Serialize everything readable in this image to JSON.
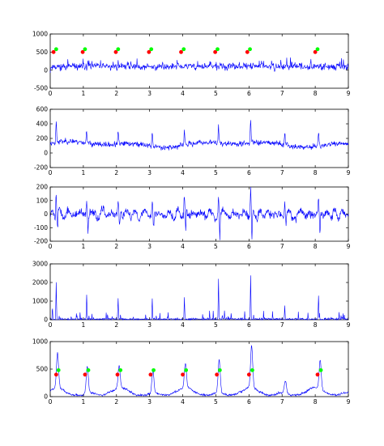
{
  "chart_data": [
    {
      "type": "line",
      "xlim": [
        0,
        9
      ],
      "ylim": [
        -500,
        1000
      ],
      "xticks": [
        "0",
        "1",
        "2",
        "3",
        "4",
        "5",
        "6",
        "7",
        "8",
        "9"
      ],
      "yticks": [
        "-500",
        "0",
        "500",
        "1000"
      ],
      "ytick_values": [
        -500,
        0,
        500,
        1000
      ],
      "grid": false,
      "signal": {
        "baseline": 100,
        "noise": 90,
        "spikes": 120,
        "spike_height": 150,
        "spike_width": 0.02,
        "hf": 0.35,
        "seed": 11
      },
      "markers": [
        {
          "name": "red",
          "color": "#ff0000",
          "x": [
            0.1,
            0.98,
            1.98,
            2.98,
            3.95,
            4.98,
            5.95,
            8.0
          ],
          "y": [
            500,
            500,
            500,
            500,
            500,
            500,
            500,
            500
          ]
        },
        {
          "name": "green",
          "color": "#00ff00",
          "x": [
            0.18,
            1.05,
            2.05,
            3.05,
            4.03,
            5.05,
            6.03,
            8.07
          ],
          "y": [
            580,
            580,
            580,
            580,
            580,
            580,
            580,
            580
          ]
        }
      ]
    },
    {
      "type": "line",
      "xlim": [
        0,
        9
      ],
      "ylim": [
        -200,
        600
      ],
      "xticks": [
        "0",
        "1",
        "2",
        "3",
        "4",
        "5",
        "6",
        "7",
        "8",
        "9"
      ],
      "yticks": [
        "-200",
        "0",
        "200",
        "400",
        "600"
      ],
      "ytick_values": [
        -200,
        0,
        200,
        400,
        600
      ],
      "grid": false,
      "signal": {
        "baseline": 120,
        "noise": 30,
        "wander": 40,
        "hf": 0.15,
        "seed": 23
      },
      "peaks": {
        "x": [
          0.18,
          1.1,
          2.05,
          3.08,
          4.05,
          5.08,
          6.05,
          7.08,
          8.1
        ],
        "y": [
          390,
          300,
          290,
          310,
          320,
          370,
          430,
          280,
          330
        ]
      }
    },
    {
      "type": "line",
      "xlim": [
        0,
        9
      ],
      "ylim": [
        -200,
        200
      ],
      "xticks": [
        "0",
        "1",
        "2",
        "3",
        "4",
        "5",
        "6",
        "7",
        "8",
        "9"
      ],
      "yticks": [
        "-200",
        "-100",
        "0",
        "100",
        "200"
      ],
      "ytick_values": [
        -200,
        -100,
        0,
        100,
        200
      ],
      "grid": false,
      "signal": {
        "baseline": 0,
        "noise": 22,
        "oscillation": 35,
        "hf": 0.05,
        "seed": 37
      },
      "peaks": {
        "x": [
          0.18,
          1.1,
          2.05,
          3.08,
          4.05,
          5.08,
          6.05,
          7.08,
          8.1
        ],
        "y": [
          160,
          100,
          90,
          110,
          120,
          150,
          190,
          80,
          120
        ]
      },
      "troughs": {
        "x": [
          0.22,
          1.14,
          2.09,
          3.12,
          4.09,
          5.12,
          6.09,
          7.12,
          8.14
        ],
        "y": [
          -90,
          -110,
          -90,
          -100,
          -130,
          -180,
          -200,
          -80,
          -150
        ]
      }
    },
    {
      "type": "line",
      "xlim": [
        0,
        9
      ],
      "ylim": [
        0,
        3000
      ],
      "xticks": [
        "0",
        "1",
        "2",
        "3",
        "4",
        "5",
        "6",
        "7",
        "8",
        "9"
      ],
      "yticks": [
        "0",
        "1000",
        "2000",
        "3000"
      ],
      "ytick_values": [
        0,
        1000,
        2000,
        3000
      ],
      "grid": false,
      "signal": {
        "baseline": 30,
        "noise": 40,
        "small_spikes": 55,
        "small_spike_height": 450,
        "hf": 0.1,
        "seed": 51
      },
      "peaks": {
        "x": [
          0.18,
          1.1,
          2.05,
          3.08,
          4.05,
          5.08,
          6.05,
          7.08,
          8.1
        ],
        "y": [
          2000,
          1350,
          1150,
          1100,
          1200,
          2200,
          2400,
          800,
          1300
        ]
      }
    },
    {
      "type": "line",
      "xlim": [
        0,
        9
      ],
      "ylim": [
        0,
        1000
      ],
      "xticks": [
        "0",
        "1",
        "2",
        "3",
        "4",
        "5",
        "6",
        "7",
        "8",
        "9"
      ],
      "yticks": [
        "0",
        "500",
        "1000"
      ],
      "ytick_values": [
        0,
        500,
        1000
      ],
      "grid": false,
      "signal": {
        "baseline": 30,
        "noise": 15,
        "bump_height": 120,
        "hf": 0.05,
        "seed": 67
      },
      "peaks": {
        "x": [
          0.22,
          1.12,
          2.08,
          3.1,
          4.08,
          5.1,
          6.08,
          7.1,
          8.15
        ],
        "y": [
          650,
          520,
          440,
          420,
          470,
          630,
          800,
          250,
          560
        ]
      },
      "markers": [
        {
          "name": "red",
          "color": "#ff0000",
          "x": [
            0.18,
            1.05,
            2.03,
            3.03,
            4.0,
            5.03,
            6.0,
            8.07
          ],
          "y": [
            400,
            400,
            400,
            400,
            400,
            400,
            400,
            400
          ]
        },
        {
          "name": "green",
          "color": "#00ff00",
          "x": [
            0.25,
            1.15,
            2.12,
            3.12,
            4.1,
            5.12,
            6.1,
            8.17
          ],
          "y": [
            480,
            480,
            480,
            480,
            480,
            480,
            480,
            480
          ]
        }
      ]
    }
  ]
}
